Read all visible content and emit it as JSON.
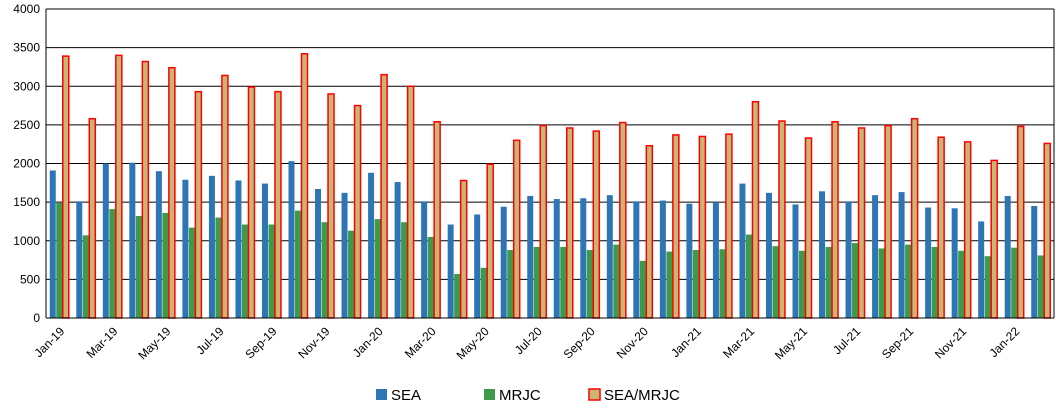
{
  "chart_data": {
    "type": "bar",
    "title": "",
    "xlabel": "",
    "ylabel": "",
    "ylim": [
      0,
      4000
    ],
    "yticks": [
      0,
      500,
      1000,
      1500,
      2000,
      2500,
      3000,
      3500,
      4000
    ],
    "grid": true,
    "legend_position": "bottom",
    "categories": [
      "Jan-19",
      "Feb-19",
      "Mar-19",
      "Apr-19",
      "May-19",
      "Jun-19",
      "Jul-19",
      "Aug-19",
      "Sep-19",
      "Oct-19",
      "Nov-19",
      "Dec-19",
      "Jan-20",
      "Feb-20",
      "Mar-20",
      "Apr-20",
      "May-20",
      "Jun-20",
      "Jul-20",
      "Aug-20",
      "Sep-20",
      "Oct-20",
      "Nov-20",
      "Dec-20",
      "Jan-21",
      "Feb-21",
      "Mar-21",
      "Apr-21",
      "May-21",
      "Jun-21",
      "Jul-21",
      "Aug-21",
      "Sep-21",
      "Oct-21",
      "Nov-21",
      "Dec-21",
      "Jan-22",
      "Feb-22"
    ],
    "category_labels": [
      "Jan-19",
      "",
      "Mar-19",
      "",
      "May-19",
      "",
      "Jul-19",
      "",
      "Sep-19",
      "",
      "Nov-19",
      "",
      "Jan-20",
      "",
      "Mar-20",
      "",
      "May-20",
      "",
      "Jul-20",
      "",
      "Sep-20",
      "",
      "Nov-20",
      "",
      "Jan-21",
      "",
      "Mar-21",
      "",
      "May-21",
      "",
      "Jul-21",
      "",
      "Sep-21",
      "",
      "Nov-21",
      "",
      "Jan-22",
      ""
    ],
    "series": [
      {
        "name": "SEA",
        "color": "#2e75b6",
        "values": [
          1910,
          1510,
          2000,
          2010,
          1900,
          1790,
          1840,
          1780,
          1740,
          2030,
          1670,
          1620,
          1880,
          1760,
          1510,
          1210,
          1340,
          1440,
          1580,
          1540,
          1550,
          1590,
          1510,
          1520,
          1480,
          1500,
          1740,
          1620,
          1470,
          1640,
          1510,
          1590,
          1630,
          1430,
          1420,
          1250,
          1580,
          1450
        ]
      },
      {
        "name": "MRJC",
        "color": "#3c9a4a",
        "values": [
          1490,
          1070,
          1410,
          1320,
          1360,
          1170,
          1300,
          1210,
          1210,
          1390,
          1240,
          1130,
          1280,
          1240,
          1050,
          570,
          650,
          880,
          920,
          920,
          880,
          950,
          740,
          860,
          880,
          890,
          1080,
          930,
          870,
          920,
          970,
          900,
          950,
          920,
          870,
          800,
          910,
          810
        ]
      },
      {
        "name": "SEA/MRJC",
        "color": "#c9b574",
        "stroke": "#ff0000",
        "values": [
          3390,
          2580,
          3400,
          3320,
          3240,
          2930,
          3140,
          2990,
          2930,
          3420,
          2900,
          2750,
          3150,
          3000,
          2540,
          1780,
          1990,
          2300,
          2490,
          2460,
          2420,
          2530,
          2230,
          2370,
          2350,
          2380,
          2800,
          2550,
          2330,
          2540,
          2460,
          2490,
          2580,
          2340,
          2280,
          2040,
          2480,
          2260
        ]
      }
    ]
  }
}
